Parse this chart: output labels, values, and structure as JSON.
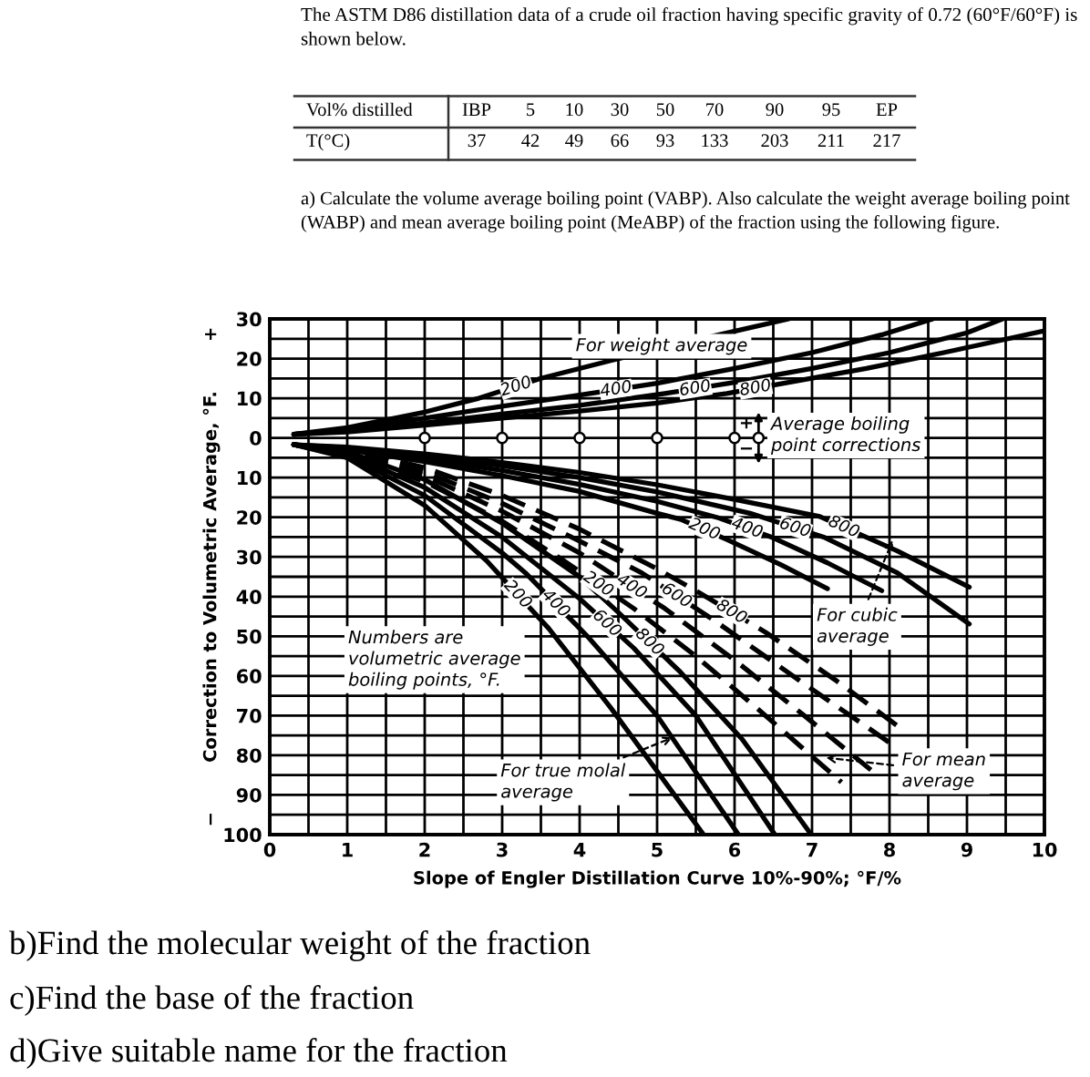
{
  "chart_data": {
    "type": "line",
    "title": "The ASTM D86 distillation data of a crude oil fraction having specific gravity of 0.72 (60°F/60°F) is\nshown below.",
    "xlabel": "Slope of Engler Distillation Curve 10%-90%; °F/%",
    "ylabel": "−        Correction to Volumetric Average, °F.        +",
    "xlim": [
      0,
      10
    ],
    "ylim": [
      -100,
      30
    ],
    "xticks": [
      0,
      {
        "value": 0.5,
        "label": null
      },
      1,
      {
        "value": 1.5,
        "label": null
      },
      2,
      {
        "value": 2.5,
        "label": null
      },
      3,
      {
        "value": 3.5,
        "label": null
      },
      4,
      {
        "value": 4.5,
        "label": null
      },
      5,
      {
        "value": 5.5,
        "label": null
      },
      6,
      {
        "value": 6.5,
        "label": null
      },
      7,
      {
        "value": 7.5,
        "label": null
      },
      8,
      {
        "value": 8.5,
        "label": null
      },
      9,
      {
        "value": 9.5,
        "label": null
      },
      10
    ],
    "yticks": [
      30,
      {
        "value": 25,
        "label": null
      },
      20,
      {
        "value": 15,
        "label": null
      },
      10,
      {
        "value": 5,
        "label": null
      },
      0,
      {
        "value": -5,
        "label": null
      },
      {
        "value": -10,
        "label": "10"
      },
      {
        "value": -15,
        "label": null
      },
      {
        "value": -20,
        "label": "20"
      },
      {
        "value": -25,
        "label": null
      },
      {
        "value": -30,
        "label": "30"
      },
      {
        "value": -35,
        "label": null
      },
      {
        "value": -40,
        "label": "40"
      },
      {
        "value": -45,
        "label": null
      },
      {
        "value": -50,
        "label": "50"
      },
      {
        "value": -55,
        "label": null
      },
      {
        "value": -60,
        "label": "60"
      },
      {
        "value": -65,
        "label": null
      },
      {
        "value": -70,
        "label": "70"
      },
      {
        "value": -75,
        "label": null
      },
      {
        "value": -80,
        "label": "80"
      },
      {
        "value": -85,
        "label": null
      },
      {
        "value": -90,
        "label": "90"
      },
      {
        "value": -95,
        "label": null
      },
      {
        "value": -100,
        "label": "100"
      }
    ],
    "grid": true,
    "series": [
      {
        "color": "#000000",
        "line_style": "solid",
        "x": [
          0.31,
          1,
          2,
          2.7,
          3.5,
          4.4,
          5.8,
          6.7
        ],
        "values": [
          0.9,
          2.6,
          6.5,
          10,
          15,
          19.5,
          26,
          30
        ]
      },
      {
        "color": "#000000",
        "line_style": "solid",
        "x": [
          0.31,
          1,
          2,
          3,
          3.9,
          5,
          6,
          7,
          7.9,
          8.56
        ],
        "values": [
          0.9,
          2.2,
          5,
          8,
          10.5,
          13.8,
          17.5,
          21.5,
          26,
          30
        ]
      },
      {
        "color": "#000000",
        "line_style": "solid",
        "x": [
          0.31,
          1,
          2,
          3,
          4,
          5.1,
          6,
          7,
          8,
          9,
          9.46
        ],
        "values": [
          0.9,
          1.8,
          3.8,
          6,
          8.2,
          11.2,
          14,
          17.5,
          21.5,
          26.5,
          30
        ]
      },
      {
        "color": "#000000",
        "line_style": "solid",
        "x": [
          0.31,
          1,
          2,
          3,
          4,
          5,
          5.9,
          6.7,
          7.7,
          8.7,
          10
        ],
        "values": [
          0.9,
          1.5,
          3.2,
          5,
          6.8,
          8.8,
          11.2,
          14,
          17.5,
          21.5,
          27
        ]
      },
      {
        "color": "#000000",
        "line_style": "solid",
        "x": [
          0.31,
          1,
          2,
          3,
          4,
          5,
          5.3,
          5.9,
          6.6,
          7.2
        ],
        "values": [
          -1.7,
          -3,
          -6,
          -9.5,
          -13.5,
          -19,
          -20.5,
          -25.6,
          -32,
          -38
        ]
      },
      {
        "color": "#000000",
        "line_style": "solid",
        "x": [
          0.31,
          1,
          2,
          3,
          4,
          5,
          5.8,
          6.5,
          7.2,
          7.9
        ],
        "values": [
          -1.7,
          -2.7,
          -5.2,
          -8.2,
          -11.7,
          -16,
          -20.2,
          -25.2,
          -31.5,
          -38.5
        ]
      },
      {
        "color": "#000000",
        "line_style": "solid",
        "x": [
          0.31,
          1,
          2,
          3,
          4,
          5,
          6.2,
          7.15,
          8.1,
          9.03
        ],
        "values": [
          -1.7,
          -2.5,
          -4.6,
          -7,
          -10,
          -13.6,
          -19,
          -25,
          -34,
          -46.9
        ]
      },
      {
        "color": "#000000",
        "line_style": "solid",
        "x": [
          0.31,
          1,
          2,
          3,
          4,
          5,
          6,
          7.1,
          8.1,
          9.03
        ],
        "values": [
          -1.7,
          -2.3,
          -4,
          -6.2,
          -8.7,
          -11.8,
          -15.5,
          -19.8,
          -28.5,
          -37.6
        ]
      },
      {
        "color": "#000000",
        "line_style": "dashed",
        "x": [
          0.31,
          1,
          2,
          3,
          3.8,
          4.7,
          5.5,
          6.4,
          7.38
        ],
        "values": [
          -1.7,
          -4,
          -11,
          -21,
          -31,
          -43,
          -55,
          -70,
          -86.8
        ]
      },
      {
        "color": "#000000",
        "line_style": "dashed",
        "x": [
          0.31,
          1,
          2,
          3,
          4,
          5.1,
          6,
          6.9,
          7.76
        ],
        "values": [
          -1.7,
          -3.5,
          -9.5,
          -18.5,
          -29,
          -43,
          -56,
          -70,
          -83.7
        ]
      },
      {
        "color": "#000000",
        "line_style": "dashed",
        "x": [
          0.31,
          1,
          2,
          3,
          4,
          4.8,
          5.7,
          6.9,
          8
        ],
        "values": [
          -1.7,
          -3,
          -8.5,
          -16.5,
          -26,
          -34,
          -45.5,
          -62,
          -76.8
        ]
      },
      {
        "color": "#000000",
        "line_style": "dashed",
        "x": [
          0.31,
          1,
          2,
          3,
          4,
          5,
          5.5,
          6.4,
          7.3,
          8.2
        ],
        "values": [
          -1.7,
          -2.8,
          -7.5,
          -14.5,
          -23,
          -33,
          -38.5,
          -49,
          -61,
          -74
        ]
      },
      {
        "color": "#000000",
        "line_style": "solid",
        "x": [
          0.31,
          1,
          2,
          2.8,
          3.6,
          4.4,
          5,
          5.6
        ],
        "values": [
          -1.7,
          -5,
          -17,
          -31,
          -48,
          -68,
          -84,
          -100
        ]
      },
      {
        "color": "#000000",
        "line_style": "solid",
        "x": [
          0.31,
          1,
          2,
          3,
          3.3,
          4.1,
          5,
          6.05
        ],
        "values": [
          -1.7,
          -4.5,
          -14.5,
          -29,
          -34,
          -50,
          -70,
          -100
        ]
      },
      {
        "color": "#000000",
        "line_style": "solid",
        "x": [
          0.31,
          1,
          2,
          3,
          4,
          4.7,
          5.5,
          6.52
        ],
        "values": [
          -1.7,
          -4,
          -12.5,
          -25,
          -40.5,
          -53,
          -70,
          -100
        ]
      },
      {
        "color": "#000000",
        "line_style": "solid",
        "x": [
          0.31,
          1,
          2,
          3,
          4,
          4.5,
          5.3,
          6.1,
          6.99
        ],
        "values": [
          -1.7,
          -3.5,
          -10.5,
          -21.5,
          -35,
          -44,
          -59,
          -76,
          -100
        ]
      },
      {
        "type": "scatter",
        "marker": "circle",
        "color": "#000000",
        "x": [
          2,
          3,
          4,
          5,
          6,
          6.31
        ],
        "values": [
          0,
          0,
          0,
          0,
          0,
          0
        ]
      }
    ],
    "annotations": [
      "Vol% distilled",
      "IBP",
      "5",
      "10",
      "30",
      "50",
      "70",
      "90",
      "95",
      "EP",
      "T(°C)",
      "37",
      "42",
      "49",
      "66",
      "93",
      "133",
      "203",
      "211",
      "217",
      "a) Calculate the volume average boiling point (VABP). Also calculate the weight average boiling point\n(WABP) and mean average boiling point (MeABP) of the fraction using the following figure.",
      "For weight average",
      "+",
      "Average boiling\npoint corrections",
      "−",
      "Numbers are\nvolumetric average\nboiling points, °F.",
      "b)Find the molecular weight of the fraction",
      "c)Find the base of the fraction",
      "d)Give suitable name for the fraction",
      {
        "text": "For cubic\naverage",
        "x": 8.04,
        "y": -25.8
      },
      {
        "text": "For true molal\naverage",
        "x": 5.2,
        "y": -75.5
      },
      {
        "text": "For mean\naverage",
        "x": 7.18,
        "y": -80.6
      },
      {
        "text": "200",
        "x": 3.18,
        "y": 12.9
      },
      {
        "text": "400",
        "x": 4.47,
        "y": 12.2
      },
      {
        "text": "600",
        "x": 5.49,
        "y": 12.4
      },
      {
        "text": "800",
        "x": 6.27,
        "y": 12.5
      },
      {
        "text": "200",
        "x": 5.61,
        "y": -23.1
      },
      {
        "text": "400",
        "x": 6.16,
        "y": -22.8
      },
      {
        "text": "600",
        "x": 6.78,
        "y": -22.7
      },
      {
        "text": "800",
        "x": 7.41,
        "y": -22.5
      },
      {
        "text": "200",
        "x": 4.24,
        "y": -36.9
      },
      {
        "text": "400",
        "x": 4.67,
        "y": -37.5
      },
      {
        "text": "600",
        "x": 5.25,
        "y": -39.8
      },
      {
        "text": "800",
        "x": 5.96,
        "y": -43.9
      },
      {
        "text": "200",
        "x": 3.2,
        "y": -39.5
      },
      {
        "text": "400",
        "x": 3.69,
        "y": -41.8
      },
      {
        "text": "600",
        "x": 4.35,
        "y": -46.8
      },
      {
        "text": "800",
        "x": 4.9,
        "y": -51.5
      }
    ]
  }
}
